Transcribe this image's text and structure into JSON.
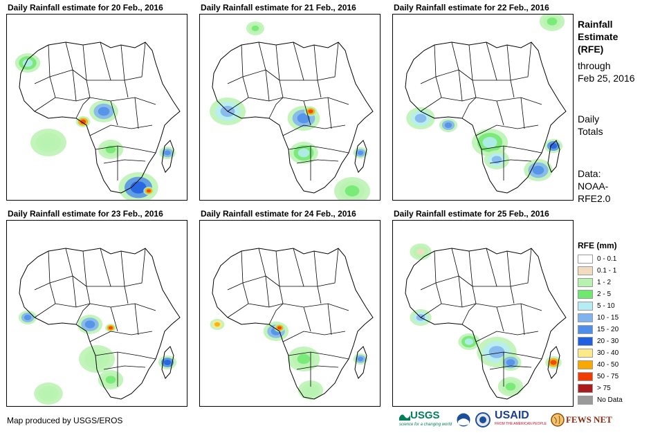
{
  "panels": [
    {
      "title": "Daily Rainfall estimate for 20 Feb., 2016"
    },
    {
      "title": "Daily Rainfall estimate for 21 Feb., 2016"
    },
    {
      "title": "Daily Rainfall estimate for 22 Feb., 2016"
    },
    {
      "title": "Daily Rainfall estimate for 23 Feb., 2016"
    },
    {
      "title": "Daily Rainfall estimate for 24 Feb., 2016"
    },
    {
      "title": "Daily Rainfall estimate for 25 Feb., 2016"
    }
  ],
  "side": {
    "title_line1": "Rainfall",
    "title_line2": "Estimate",
    "title_line3": "(RFE)",
    "through_label": "through",
    "through_date": "Feb 25, 2016",
    "totals_line1": "Daily",
    "totals_line2": "Totals",
    "data_line1": "Data:",
    "data_line2": "NOAA-",
    "data_line3": "RFE2.0"
  },
  "legend": {
    "title": "RFE (mm)",
    "items": [
      {
        "label": "0 - 0.1",
        "color": "#ffffff"
      },
      {
        "label": "0.1 - 1",
        "color": "#f1dcc0"
      },
      {
        "label": "1 - 2",
        "color": "#b8f2b0"
      },
      {
        "label": "2 - 5",
        "color": "#6ee86e"
      },
      {
        "label": "5 - 10",
        "color": "#b6ecf4"
      },
      {
        "label": "10 - 15",
        "color": "#7fb2ee"
      },
      {
        "label": "15 - 20",
        "color": "#4f8ee8"
      },
      {
        "label": "20 - 30",
        "color": "#1f5fe0"
      },
      {
        "label": "30 - 40",
        "color": "#fce98a"
      },
      {
        "label": "40 - 50",
        "color": "#f8a900"
      },
      {
        "label": "50 - 75",
        "color": "#f03c00"
      },
      {
        "label": "> 75",
        "color": "#a81c1c"
      },
      {
        "label": "No Data",
        "color": "#9a9a9a"
      }
    ]
  },
  "credit": "Map produced by USGS/EROS",
  "logos": {
    "usgs": "USGS",
    "usgs_tagline": "science for a changing world",
    "usaid": "USAID",
    "usaid_tagline": "FROM THE AMERICAN PEOPLE",
    "fewsnet": "FEWS NET"
  }
}
